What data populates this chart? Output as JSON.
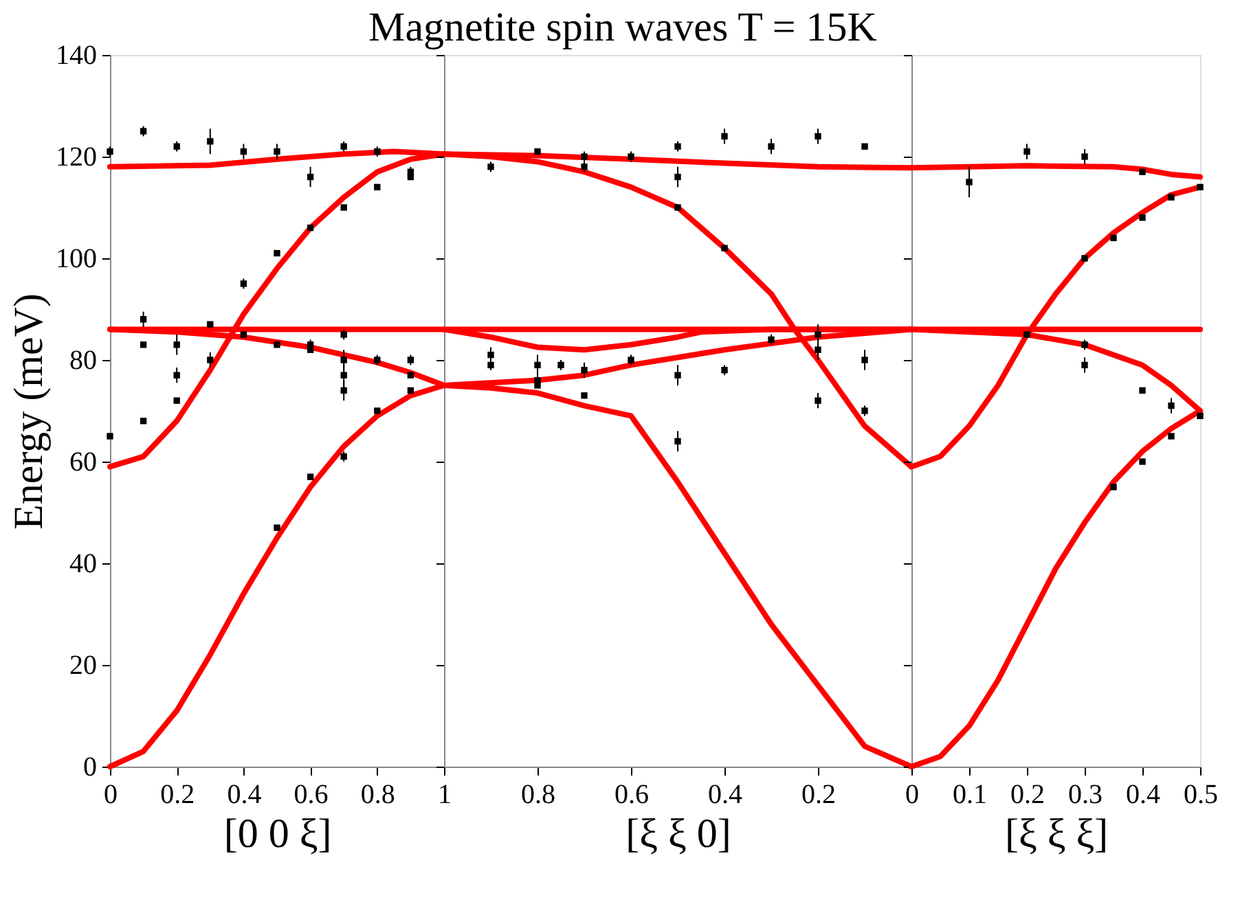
{
  "chart_data": [
    {
      "type": "line",
      "xlabel": "[0 0 ξ]",
      "ylabel": "Energy (meV)",
      "xlim": [
        0,
        1
      ],
      "ylim": [
        0,
        140
      ],
      "xticks": [
        0,
        0.2,
        0.4,
        0.6,
        0.8,
        1
      ],
      "yticks": [
        0,
        20,
        40,
        60,
        80,
        100,
        120,
        140
      ],
      "line_style": "solid",
      "series": [
        {
          "color": "#ff0000",
          "x": [
            0,
            0.3,
            0.5,
            0.7,
            0.85,
            1
          ],
          "values": [
            118,
            118.3,
            119.5,
            120.5,
            121,
            120.5
          ]
        },
        {
          "color": "#ff0000",
          "x": [
            0,
            1
          ],
          "values": [
            86,
            86
          ]
        },
        {
          "color": "#ff0000",
          "x": [
            0,
            0.1,
            0.2,
            0.3,
            0.4,
            0.5,
            0.6,
            0.7,
            0.8,
            0.9,
            1
          ],
          "values": [
            59,
            61,
            68,
            78,
            89,
            98,
            106,
            112,
            117,
            119.5,
            120.5
          ]
        },
        {
          "color": "#ff0000",
          "x": [
            0,
            0.2,
            0.4,
            0.6,
            0.8,
            0.9,
            1
          ],
          "values": [
            86,
            85.5,
            84.5,
            82.5,
            79.5,
            77.5,
            75
          ]
        },
        {
          "color": "#ff0000",
          "x": [
            0,
            0.1,
            0.2,
            0.3,
            0.4,
            0.5,
            0.6,
            0.7,
            0.8,
            0.9,
            1
          ],
          "values": [
            0,
            3,
            11,
            22,
            34,
            45,
            55,
            63,
            69,
            73,
            75
          ]
        },
        {
          "type": "scatter",
          "color": "#000000",
          "marker": "square",
          "x": [
            0,
            0,
            0.1,
            0.1,
            0.1,
            0.1,
            0.2,
            0.2,
            0.2,
            0.2,
            0.3,
            0.3,
            0.3,
            0.4,
            0.4,
            0.4,
            0.5,
            0.5,
            0.5,
            0.5,
            0.6,
            0.6,
            0.6,
            0.6,
            0.6,
            0.7,
            0.7,
            0.7,
            0.7,
            0.7,
            0.7,
            0.7,
            0.8,
            0.8,
            0.8,
            0.8,
            0.9,
            0.9,
            0.9,
            0.9,
            0.9
          ],
          "values": [
            121,
            65,
            125,
            88,
            83,
            68,
            122,
            83,
            77,
            72,
            123,
            87,
            80,
            121,
            95,
            85,
            121,
            101,
            83,
            47,
            116,
            106,
            83,
            82,
            57,
            122,
            110,
            85,
            80,
            77,
            74,
            61,
            121,
            114,
            80,
            70,
            117,
            116,
            80,
            77,
            74
          ],
          "errors": [
            1,
            null,
            1,
            1.5,
            null,
            null,
            1,
            2,
            1.5,
            null,
            2.5,
            null,
            1.5,
            1.5,
            1,
            null,
            1.5,
            null,
            null,
            null,
            2,
            null,
            1,
            null,
            null,
            1,
            null,
            1,
            2,
            3,
            2,
            1,
            1,
            null,
            1,
            null,
            1,
            null,
            1,
            null,
            null
          ]
        }
      ]
    },
    {
      "type": "line",
      "title": "Magnetite spin waves T = 15K",
      "xlabel": "[ξ ξ 0]",
      "xlim": [
        1,
        0
      ],
      "ylim": [
        0,
        140
      ],
      "xticks": [
        0.8,
        0.6,
        0.4,
        0.2
      ],
      "yticks": [
        {
          "value": 0,
          "label": null
        },
        {
          "value": 20,
          "label": null
        },
        {
          "value": 40,
          "label": null
        },
        {
          "value": 60,
          "label": null
        },
        {
          "value": 80,
          "label": null
        },
        {
          "value": 100,
          "label": null
        },
        {
          "value": 120,
          "label": null
        },
        {
          "value": 140,
          "label": null
        }
      ],
      "tick_labels": "x",
      "line_style": "solid",
      "series": [
        {
          "color": "#ff0000",
          "x": [
            1,
            0.8,
            0.6,
            0.4,
            0.2,
            0
          ],
          "values": [
            120.5,
            120.2,
            119.5,
            118.7,
            118,
            117.8
          ]
        },
        {
          "color": "#ff0000",
          "x": [
            1,
            0.9,
            0.8,
            0.7,
            0.6,
            0.5,
            0.4,
            0.3,
            0.25,
            0.2,
            0.1,
            0
          ],
          "values": [
            120.5,
            120,
            119,
            117,
            114,
            110,
            102,
            93,
            86,
            80,
            67,
            59
          ]
        },
        {
          "color": "#ff0000",
          "x": [
            1,
            0
          ],
          "values": [
            86,
            86
          ]
        },
        {
          "color": "#ff0000",
          "x": [
            1,
            0.9,
            0.8,
            0.7,
            0.6,
            0.5,
            0.45,
            0.3,
            0
          ],
          "values": [
            86,
            84.5,
            82.5,
            82,
            83,
            84.5,
            85.5,
            86,
            86
          ]
        },
        {
          "color": "#ff0000",
          "x": [
            1,
            0.8,
            0.7,
            0.6,
            0.4,
            0.2,
            0
          ],
          "values": [
            75,
            76,
            77,
            79,
            82,
            84.5,
            86
          ]
        },
        {
          "color": "#ff0000",
          "x": [
            1,
            0.9,
            0.8,
            0.7,
            0.6,
            0.5,
            0.4,
            0.3,
            0.2,
            0.1,
            0
          ],
          "values": [
            75,
            74.5,
            73.5,
            71,
            69,
            56,
            42,
            28,
            16,
            4,
            0
          ]
        },
        {
          "type": "scatter",
          "color": "#000000",
          "marker": "square",
          "x": [
            0.9,
            0.9,
            0.9,
            0.8,
            0.8,
            0.8,
            0.8,
            0.75,
            0.7,
            0.7,
            0.7,
            0.7,
            0.6,
            0.6,
            0.5,
            0.5,
            0.5,
            0.5,
            0.5,
            0.4,
            0.4,
            0.4,
            0.3,
            0.3,
            0.2,
            0.2,
            0.2,
            0.2,
            0.1,
            0.1,
            0.1
          ],
          "values": [
            118,
            81,
            79,
            121,
            79,
            76,
            75,
            79,
            120,
            118,
            78,
            73,
            120,
            80,
            122,
            116,
            110,
            77,
            64,
            124,
            102,
            78,
            122,
            84,
            124,
            85,
            82,
            72,
            122,
            80,
            70
          ],
          "errors": [
            1,
            1.5,
            1,
            null,
            2,
            1,
            null,
            1,
            1,
            1,
            1.5,
            null,
            1,
            1,
            1,
            2,
            null,
            2,
            2,
            1.5,
            null,
            1,
            1.5,
            1,
            1.5,
            2,
            2,
            1.5,
            null,
            2,
            1
          ]
        }
      ]
    },
    {
      "type": "line",
      "xlabel": "[ξ ξ ξ]",
      "xlim": [
        0,
        0.5
      ],
      "ylim": [
        0,
        140
      ],
      "xticks": [
        {
          "value": 0,
          "label": "0"
        },
        0.1,
        0.2,
        0.3,
        0.4,
        0.5
      ],
      "yticks": [
        {
          "value": 0,
          "label": null
        },
        {
          "value": 20,
          "label": null
        },
        {
          "value": 40,
          "label": null
        },
        {
          "value": 60,
          "label": null
        },
        {
          "value": 80,
          "label": null
        },
        {
          "value": 100,
          "label": null
        },
        {
          "value": 120,
          "label": null
        },
        {
          "value": 140,
          "label": null
        }
      ],
      "tick_labels": "x",
      "line_style": "solid",
      "series": [
        {
          "color": "#ff0000",
          "x": [
            0,
            0.2,
            0.35,
            0.4,
            0.45,
            0.5
          ],
          "values": [
            117.8,
            118.2,
            118,
            117.5,
            116.5,
            116
          ]
        },
        {
          "color": "#ff0000",
          "x": [
            0,
            0.05,
            0.1,
            0.15,
            0.2,
            0.25,
            0.3,
            0.35,
            0.4,
            0.45,
            0.5
          ],
          "values": [
            59,
            61,
            67,
            75,
            85,
            93,
            100,
            105,
            109,
            112.5,
            114
          ]
        },
        {
          "color": "#ff0000",
          "x": [
            0,
            0.5
          ],
          "values": [
            86,
            86
          ]
        },
        {
          "color": "#ff0000",
          "x": [
            0,
            0.2,
            0.3,
            0.4,
            0.45,
            0.5
          ],
          "values": [
            86,
            85,
            83,
            79,
            75,
            70
          ]
        },
        {
          "color": "#ff0000",
          "x": [
            0,
            0.05,
            0.1,
            0.15,
            0.2,
            0.25,
            0.3,
            0.35,
            0.4,
            0.45,
            0.5
          ],
          "values": [
            0,
            2,
            8,
            17,
            28,
            39,
            48,
            56,
            62,
            66.5,
            70
          ]
        },
        {
          "type": "scatter",
          "color": "#000000",
          "marker": "square",
          "x": [
            0.1,
            0.2,
            0.2,
            0.3,
            0.3,
            0.3,
            0.3,
            0.35,
            0.35,
            0.4,
            0.4,
            0.4,
            0.4,
            0.45,
            0.45,
            0.45,
            0.5,
            0.5
          ],
          "values": [
            115,
            121,
            85,
            120,
            100,
            83,
            79,
            104,
            55,
            117,
            108,
            74,
            60,
            112,
            71,
            65,
            114,
            69
          ],
          "errors": [
            3,
            1.5,
            null,
            1.5,
            null,
            1,
            1.5,
            null,
            null,
            null,
            null,
            null,
            null,
            null,
            1.5,
            null,
            null,
            null
          ]
        }
      ]
    }
  ]
}
